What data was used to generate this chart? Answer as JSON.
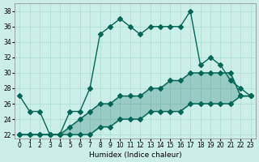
{
  "xlabel": "Humidex (Indice chaleur)",
  "ylabel": "",
  "xlim": [
    -0.5,
    23.5
  ],
  "ylim": [
    21.5,
    39
  ],
  "xticks": [
    0,
    1,
    2,
    3,
    4,
    5,
    6,
    7,
    8,
    9,
    10,
    11,
    12,
    13,
    14,
    15,
    16,
    17,
    18,
    19,
    20,
    21,
    22,
    23
  ],
  "yticks": [
    22,
    24,
    26,
    28,
    30,
    32,
    34,
    36,
    38
  ],
  "bg_color": "#cceee8",
  "grid_color": "#aaddcc",
  "line_color": "#006655",
  "line1_x": [
    0,
    1,
    2,
    3,
    4,
    5,
    6,
    7,
    8,
    9,
    10,
    11,
    12,
    13,
    14,
    15,
    16,
    17,
    18,
    19,
    20,
    21,
    22,
    23
  ],
  "line1_y": [
    27,
    25,
    25,
    22,
    22,
    25,
    25,
    28,
    35,
    36,
    37,
    36,
    35,
    36,
    36,
    36,
    36,
    38,
    31,
    32,
    31,
    29,
    28,
    27
  ],
  "line2_x": [
    0,
    1,
    2,
    3,
    4,
    5,
    6,
    7,
    8,
    9,
    10,
    11,
    12,
    13,
    14,
    15,
    16,
    17,
    18,
    19,
    20,
    21,
    22,
    23
  ],
  "line2_y": [
    22,
    22,
    22,
    22,
    22,
    23,
    24,
    25,
    26,
    26,
    27,
    27,
    27,
    28,
    28,
    29,
    29,
    30,
    30,
    30,
    30,
    30,
    27,
    27
  ],
  "line3_x": [
    0,
    1,
    2,
    3,
    4,
    5,
    6,
    7,
    8,
    9,
    10,
    11,
    12,
    13,
    14,
    15,
    16,
    17,
    18,
    19,
    20,
    21,
    22,
    23
  ],
  "line3_y": [
    22,
    22,
    22,
    22,
    22,
    22,
    22,
    22,
    23,
    23,
    24,
    24,
    24,
    25,
    25,
    25,
    25,
    26,
    26,
    26,
    26,
    26,
    27,
    27
  ]
}
